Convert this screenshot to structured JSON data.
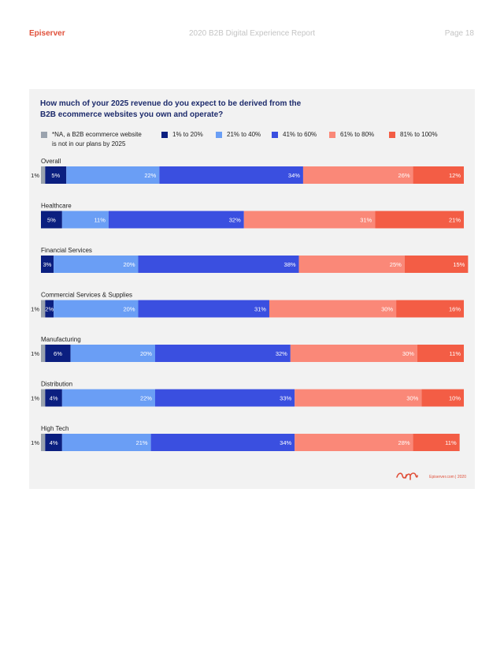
{
  "header": {
    "brand": "Episerver",
    "report_title": "2020 B2B Digital Experience Report",
    "page": "Page 18"
  },
  "footer": {
    "site": "Episerver.com | 2020"
  },
  "colors": {
    "na": "#9aa3ae",
    "b1": "#0b1f80",
    "b2": "#6a9ef5",
    "b3": "#3a4fe0",
    "b4": "#fa8878",
    "b5": "#f35d45",
    "brand": "#e0503a"
  },
  "chart_data": {
    "type": "bar",
    "orientation": "horizontal-stacked-100",
    "title": "How much of your 2025 revenue do you expect to be derived from the B2B ecommerce websites you own and operate?",
    "legend": [
      "*NA, a B2B ecommerce website is not in our plans by 2025",
      "1% to 20%",
      "21% to 40%",
      "41% to 60%",
      "61% to 80%",
      "81% to 100%"
    ],
    "legend_na_line1": "*NA, a B2B ecommerce website",
    "legend_na_line2": "is not in our plans by 2025",
    "categories": [
      "Overall",
      "Healthcare",
      "Financial Services",
      "Commercial Services & Supplies",
      "Manufacturing",
      "Distribution",
      "High Tech"
    ],
    "series": [
      {
        "name": "*NA",
        "values": [
          1,
          0,
          0,
          1,
          1,
          1,
          1
        ]
      },
      {
        "name": "1% to 20%",
        "values": [
          5,
          5,
          3,
          2,
          6,
          4,
          4
        ]
      },
      {
        "name": "21% to 40%",
        "values": [
          22,
          11,
          20,
          20,
          20,
          22,
          21
        ]
      },
      {
        "name": "41% to 60%",
        "values": [
          34,
          32,
          38,
          31,
          32,
          33,
          34
        ]
      },
      {
        "name": "61% to 80%",
        "values": [
          26,
          31,
          25,
          30,
          30,
          30,
          28
        ]
      },
      {
        "name": "81% to 100%",
        "values": [
          12,
          21,
          15,
          16,
          11,
          10,
          11
        ]
      }
    ],
    "value_suffix": "%",
    "xlim": [
      0,
      100
    ]
  }
}
